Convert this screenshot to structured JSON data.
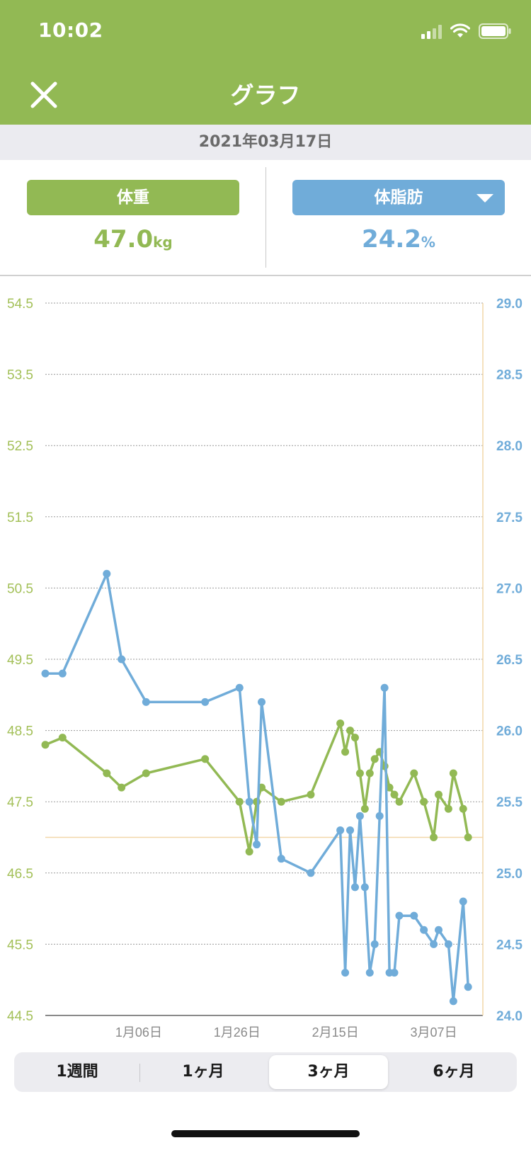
{
  "status": {
    "time": "10:02"
  },
  "header": {
    "title": "グラフ"
  },
  "date": "2021年03月17日",
  "metrics": {
    "left": {
      "label": "体重",
      "value": "47.0",
      "unit": "kg"
    },
    "right": {
      "label": "体脂肪",
      "value": "24.2",
      "unit": "%"
    }
  },
  "colors": {
    "header": "#92b954",
    "weight": "#92b954",
    "fat": "#70acd9",
    "reference": "#f2d7a9"
  },
  "chart_data": {
    "type": "line",
    "left_axis": {
      "ticks": [
        "54.5",
        "53.5",
        "52.5",
        "51.5",
        "50.5",
        "49.5",
        "48.5",
        "47.5",
        "46.5",
        "45.5",
        "44.5"
      ],
      "range": [
        44.5,
        54.5
      ]
    },
    "right_axis": {
      "ticks": [
        "29.0",
        "28.5",
        "28.0",
        "27.5",
        "27.0",
        "26.5",
        "26.0",
        "25.5",
        "25.0",
        "24.5",
        "24.0"
      ],
      "range": [
        24.0,
        29.0
      ]
    },
    "x_ticks": [
      "1月06日",
      "1月26日",
      "2月15日",
      "3月07日"
    ],
    "x_tick_values": [
      -10,
      10,
      30,
      50
    ],
    "x_range": [
      -29,
      60
    ],
    "reference_line": {
      "value": 47.0,
      "x": 60
    },
    "series": [
      {
        "axis": "left",
        "x": [
          -29,
          -25.5,
          -16.5,
          -13.5,
          -8.5,
          3.5,
          10.5,
          12.5,
          14,
          15,
          19,
          25,
          31,
          32,
          33,
          34,
          35,
          36,
          37,
          38,
          39,
          40,
          41,
          42,
          43,
          46,
          48,
          50,
          51,
          53,
          54,
          56,
          57
        ],
        "values": [
          48.3,
          48.4,
          47.9,
          47.7,
          47.9,
          48.1,
          47.5,
          46.8,
          47.5,
          47.7,
          47.5,
          47.6,
          48.6,
          48.2,
          48.5,
          48.4,
          47.9,
          47.4,
          47.9,
          48.1,
          48.2,
          48.0,
          47.7,
          47.6,
          47.5,
          47.9,
          47.5,
          47.0,
          47.6,
          47.4,
          47.9,
          47.4,
          47.0
        ]
      },
      {
        "axis": "right",
        "x": [
          -29,
          -25.5,
          -16.5,
          -13.5,
          -8.5,
          3.5,
          10.5,
          12.5,
          14,
          15,
          19,
          25,
          31,
          32,
          33,
          34,
          35,
          36,
          37,
          38,
          39,
          40,
          41,
          42,
          43,
          46,
          48,
          50,
          51,
          53,
          54,
          56,
          57
        ],
        "values": [
          26.4,
          26.4,
          27.1,
          26.5,
          26.2,
          26.2,
          26.3,
          25.5,
          25.2,
          26.2,
          25.1,
          25.0,
          25.3,
          24.3,
          25.3,
          24.9,
          25.4,
          24.9,
          24.3,
          24.5,
          25.4,
          26.3,
          24.3,
          24.3,
          24.7,
          24.7,
          24.6,
          24.5,
          24.6,
          24.5,
          24.1,
          24.8,
          24.2
        ]
      }
    ]
  },
  "ranges": {
    "week": "1週間",
    "month": "1ヶ月",
    "three_months": "3ヶ月",
    "six_months": "6ヶ月"
  }
}
